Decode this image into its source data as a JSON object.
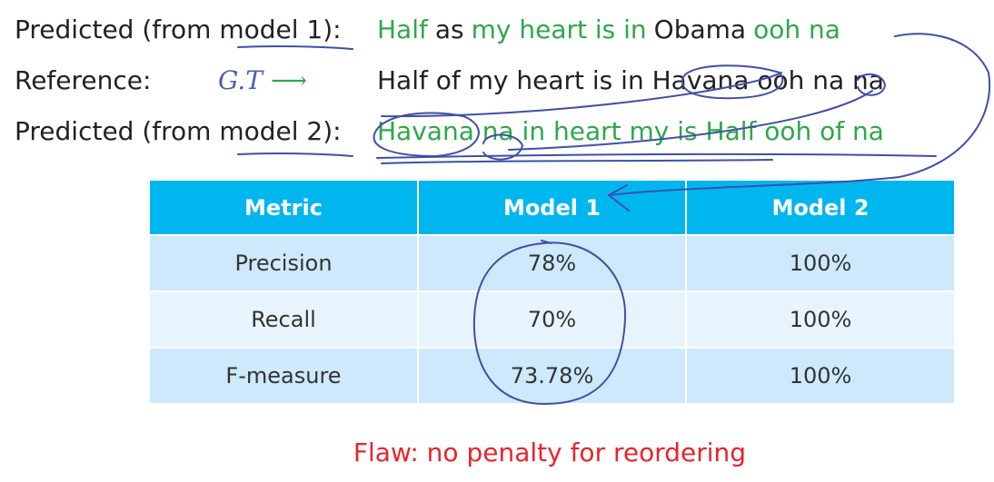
{
  "lines": {
    "pred1": {
      "label": "Predicted (from model 1):",
      "words": [
        {
          "t": "Half",
          "c": "green"
        },
        {
          "t": "as",
          "c": "dark"
        },
        {
          "t": "my heart is in",
          "c": "green"
        },
        {
          "t": "Obama",
          "c": "dark"
        },
        {
          "t": "ooh na",
          "c": "green"
        }
      ]
    },
    "ref": {
      "label": "Reference:",
      "annotation": "G.T",
      "arrow": "⟶",
      "text": "Half of my heart is in Havana ooh na na"
    },
    "pred2": {
      "label": "Predicted (from model 2):",
      "text": "Havana na in heart my is Half ooh of na"
    }
  },
  "table": {
    "headers": [
      "Metric",
      "Model 1",
      "Model 2"
    ],
    "rows": [
      {
        "metric": "Precision",
        "m1": "78%",
        "m2": "100%"
      },
      {
        "metric": "Recall",
        "m1": "70%",
        "m2": "100%"
      },
      {
        "metric": "F-measure",
        "m1": "73.78%",
        "m2": "100%"
      }
    ]
  },
  "footer": {
    "flaw": "Flaw: no penalty for reordering"
  },
  "colors": {
    "green": "#2ea84a",
    "header_blue": "#00b6ef",
    "flaw_red": "#e8242c",
    "ink": "#3f4fa8"
  }
}
